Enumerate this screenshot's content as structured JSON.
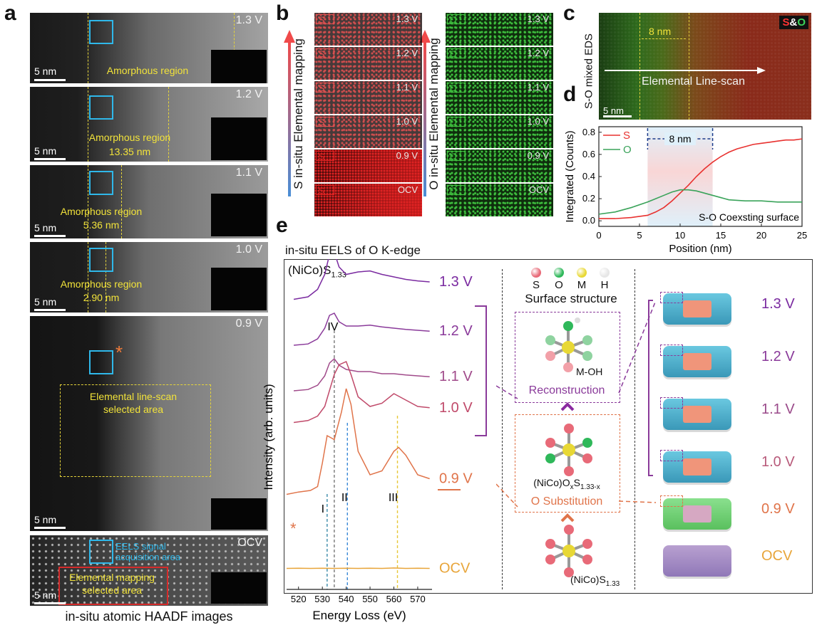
{
  "panel_labels": {
    "a": "a",
    "b": "b",
    "c": "c",
    "d": "d",
    "e": "e"
  },
  "panel_a": {
    "caption": "in-situ atomic HAADF images",
    "scale": "5 nm",
    "frames": [
      {
        "voltage": "1.3 V",
        "label": "Amorphous region",
        "width": ""
      },
      {
        "voltage": "1.2 V",
        "label": "Amorphous region",
        "width": "13.35 nm"
      },
      {
        "voltage": "1.1 V",
        "label": "Amorphous region",
        "width": "5.36 nm"
      },
      {
        "voltage": "1.0 V",
        "label": "Amorphous region",
        "width": "2.90 nm"
      },
      {
        "voltage": "0.9 V",
        "label": "Elemental line-scan",
        "width": "selected area"
      },
      {
        "voltage": "OCV",
        "label": "Elemental mapping",
        "width": "selected area"
      }
    ],
    "asterisk": "*",
    "eels_label_1": "EELS signal",
    "eels_label_2": "acquisition area"
  },
  "panel_b": {
    "s_axis": "S in-situ Elemental mapping",
    "o_axis": "O in-situ Elemental mapping",
    "s_tag": "S",
    "o_tag": "O",
    "voltages": [
      "1.3 V",
      "1.2 V",
      "1.1 V",
      "1.0 V",
      "0.9 V",
      "OCV"
    ]
  },
  "panel_c": {
    "side_label": "S-O mixed EDS",
    "legend_s": "S",
    "legend_amp": "&",
    "legend_o": "O",
    "width": "8 nm",
    "linescan": "Elemental Line-scan",
    "scale": "5 nm"
  },
  "chart_data": [
    {
      "type": "line",
      "panel": "d",
      "xlabel": "Position (nm)",
      "ylabel": "Integrated (Counts)",
      "xlim": [
        0,
        25
      ],
      "ylim": [
        -0.05,
        0.85
      ],
      "xticks": [
        "0",
        "5",
        "10",
        "15",
        "20",
        "25"
      ],
      "yticks": [
        "0.0",
        "0.2",
        "0.4",
        "0.6",
        "0.8"
      ],
      "annotation": "S-O Coexsting surface",
      "bracket_label": "8 nm",
      "bracket_range": [
        6,
        14
      ],
      "series": [
        {
          "name": "S",
          "color": "#e8312f",
          "x": [
            0,
            2,
            4,
            6,
            7,
            8,
            9,
            10,
            11,
            12,
            13,
            14,
            15,
            16,
            17,
            18,
            19,
            20,
            21,
            22,
            23,
            24,
            25
          ],
          "y": [
            0.02,
            0.02,
            0.03,
            0.05,
            0.08,
            0.12,
            0.18,
            0.25,
            0.32,
            0.4,
            0.47,
            0.53,
            0.58,
            0.62,
            0.65,
            0.67,
            0.69,
            0.7,
            0.71,
            0.72,
            0.73,
            0.73,
            0.74
          ]
        },
        {
          "name": "O",
          "color": "#3aa35a",
          "x": [
            0,
            2,
            4,
            6,
            7,
            8,
            9,
            10,
            11,
            12,
            13,
            14,
            15,
            16,
            18,
            20,
            22,
            25
          ],
          "y": [
            0.06,
            0.08,
            0.12,
            0.17,
            0.2,
            0.23,
            0.26,
            0.28,
            0.28,
            0.27,
            0.25,
            0.23,
            0.21,
            0.19,
            0.18,
            0.18,
            0.17,
            0.17
          ]
        }
      ]
    },
    {
      "type": "line",
      "panel": "e",
      "title": "in-situ EELS of O K-edge",
      "xlabel": "Energy Loss (eV)",
      "ylabel": "Intensity (arb. units)",
      "xlim": [
        515,
        576
      ],
      "xticks": [
        "520",
        "530",
        "540",
        "550",
        "560",
        "570"
      ],
      "sample_label": "(NiCo)S",
      "sample_sub": "1.33",
      "peak_labels": [
        "IV",
        "I",
        "II",
        "III"
      ],
      "peak_energies": [
        535,
        532,
        540.5,
        561.5
      ],
      "series": [
        {
          "name": "1.3 V",
          "color": "#7a2aa0",
          "x": [
            518,
            524,
            528,
            531,
            533,
            535,
            537,
            540,
            545,
            550,
            555,
            560,
            565,
            570,
            575
          ],
          "y": [
            0.05,
            0.1,
            0.25,
            0.55,
            0.95,
            1.0,
            0.7,
            0.55,
            0.6,
            0.62,
            0.55,
            0.5,
            0.45,
            0.42,
            0.4
          ]
        },
        {
          "name": "1.2 V",
          "color": "#8a3a9a",
          "x": [
            518,
            524,
            528,
            531,
            533,
            535,
            537,
            540,
            545,
            550,
            555,
            560,
            565,
            570,
            575
          ],
          "y": [
            0.05,
            0.08,
            0.2,
            0.45,
            0.75,
            0.8,
            0.6,
            0.5,
            0.5,
            0.52,
            0.48,
            0.45,
            0.42,
            0.4,
            0.38
          ]
        },
        {
          "name": "1.1 V",
          "color": "#a04a8a",
          "x": [
            518,
            524,
            528,
            531,
            533,
            535,
            537,
            540,
            545,
            550,
            555,
            560,
            565,
            570,
            575
          ],
          "y": [
            0.05,
            0.08,
            0.18,
            0.4,
            0.7,
            0.8,
            0.65,
            0.55,
            0.5,
            0.5,
            0.45,
            0.45,
            0.42,
            0.4,
            0.38
          ]
        },
        {
          "name": "1.0 V",
          "color": "#c04a6a",
          "x": [
            518,
            524,
            528,
            531,
            533,
            535,
            537,
            540,
            542,
            545,
            550,
            555,
            560,
            565,
            570,
            575
          ],
          "y": [
            0.05,
            0.08,
            0.15,
            0.3,
            0.55,
            0.8,
            0.95,
            1.0,
            0.8,
            0.45,
            0.3,
            0.35,
            0.5,
            0.4,
            0.3,
            0.28
          ]
        },
        {
          "name": "0.9 V",
          "color": "#e0744a",
          "x": [
            515,
            520,
            525,
            528,
            530,
            532,
            535,
            538,
            540,
            542,
            545,
            550,
            555,
            560,
            562,
            565,
            570,
            575
          ],
          "y": [
            0.05,
            0.08,
            0.1,
            0.15,
            0.45,
            0.8,
            0.75,
            1.1,
            1.4,
            1.2,
            0.6,
            0.3,
            0.35,
            0.6,
            0.65,
            0.55,
            0.3,
            0.25
          ]
        },
        {
          "name": "OCV",
          "color": "#e8a53a",
          "x": [
            515,
            520,
            525,
            530,
            535,
            540,
            545,
            550,
            555,
            560,
            565,
            570,
            575
          ],
          "y": [
            0.05,
            0.06,
            0.05,
            0.06,
            0.05,
            0.06,
            0.05,
            0.06,
            0.05,
            0.07,
            0.05,
            0.06,
            0.05
          ]
        }
      ]
    }
  ],
  "panel_e_center": {
    "legend": [
      "S",
      "O",
      "M",
      "H"
    ],
    "legend_colors": [
      "#e86a78",
      "#2fb85a",
      "#e8d835",
      "#e6e6e6"
    ],
    "title": "Surface structure",
    "moh": "M-OH",
    "reconstruction": "Reconstruction",
    "oxysulfide_a": "(NiCo)O",
    "oxysulfide_x": "x",
    "oxysulfide_s": "S",
    "oxysulfide_sub": "1.33-x",
    "substitution": "O Substitution",
    "sulfide": "(NiCo)S",
    "sulfide_sub": "1.33"
  },
  "panel_e_right": {
    "voltages": [
      "1.3 V",
      "1.2 V",
      "1.1 V",
      "1.0 V",
      "0.9 V",
      "OCV"
    ],
    "colors": [
      "#7a2aa0",
      "#8a3a9a",
      "#9a4a8a",
      "#b85a7a",
      "#e0744a",
      "#e8a53a"
    ]
  }
}
